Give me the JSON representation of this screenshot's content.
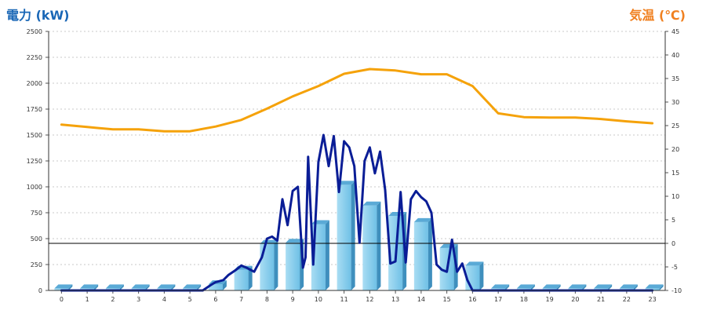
{
  "chart_data": {
    "type": "bar",
    "y_left_label": "電力 (kW)",
    "y_right_label": "気温 (℃)",
    "x_ticks": [
      "0",
      "1",
      "2",
      "3",
      "4",
      "5",
      "6",
      "7",
      "8",
      "9",
      "10",
      "11",
      "12",
      "13",
      "14",
      "15",
      "16",
      "17",
      "18",
      "19",
      "20",
      "21",
      "22",
      "23"
    ],
    "y_left_ticks": [
      "0",
      "250",
      "500",
      "750",
      "1000",
      "1250",
      "1500",
      "1750",
      "2000",
      "2250",
      "2500"
    ],
    "y_right_ticks": [
      "-10",
      "-5",
      "0",
      "5",
      "10",
      "15",
      "20",
      "25",
      "30",
      "35",
      "40",
      "45"
    ],
    "ylim_left": [
      0,
      2500
    ],
    "ylim_right": [
      -10,
      45
    ],
    "grid": true,
    "series": [
      {
        "type": "bar",
        "axis": "left",
        "color": "#87ceeb",
        "x": [
          0,
          1,
          2,
          3,
          4,
          5,
          6,
          7,
          8,
          9,
          10,
          11,
          12,
          13,
          14,
          15,
          16,
          17,
          18,
          19,
          20,
          21,
          22,
          23
        ],
        "values": [
          20,
          20,
          20,
          20,
          20,
          20,
          60,
          200,
          450,
          460,
          640,
          1020,
          820,
          720,
          660,
          410,
          240,
          20,
          20,
          20,
          20,
          20,
          20,
          20
        ]
      },
      {
        "type": "line",
        "axis": "left",
        "color": "#0a1d96",
        "x": [
          0,
          1,
          2,
          3,
          4,
          5,
          5.5,
          5.8,
          6,
          6.3,
          6.5,
          6.8,
          7,
          7.2,
          7.5,
          7.8,
          8,
          8.2,
          8.4,
          8.6,
          8.8,
          9,
          9.2,
          9.4,
          9.5,
          9.6,
          9.8,
          10,
          10.2,
          10.4,
          10.6,
          10.8,
          11,
          11.2,
          11.4,
          11.6,
          11.8,
          12,
          12.2,
          12.4,
          12.6,
          12.8,
          13,
          13.2,
          13.4,
          13.6,
          13.8,
          14,
          14.2,
          14.4,
          14.6,
          14.8,
          15,
          15.2,
          15.4,
          15.6,
          15.8,
          16,
          16.2,
          16.4,
          16.6,
          17,
          18,
          19,
          20,
          21,
          22,
          23
        ],
        "values": [
          0,
          0,
          0,
          0,
          0,
          0,
          0,
          50,
          80,
          100,
          150,
          200,
          240,
          220,
          180,
          320,
          500,
          520,
          480,
          880,
          630,
          960,
          1000,
          220,
          320,
          1290,
          250,
          1240,
          1500,
          1200,
          1490,
          950,
          1440,
          1380,
          1200,
          460,
          1250,
          1380,
          1130,
          1340,
          970,
          260,
          280,
          950,
          270,
          880,
          960,
          900,
          860,
          750,
          250,
          200,
          180,
          490,
          180,
          260,
          100,
          0,
          0,
          0,
          0,
          0,
          0,
          0,
          0,
          0,
          0,
          0
        ]
      },
      {
        "type": "line",
        "axis": "right",
        "color": "#f5a20a",
        "x": [
          0,
          1,
          2,
          3,
          4,
          5,
          6,
          7,
          8,
          9,
          10,
          11,
          12,
          13,
          14,
          15,
          16,
          17,
          18,
          19,
          20,
          21,
          22,
          23
        ],
        "values": [
          25.2,
          24.7,
          24.2,
          24.2,
          23.8,
          23.8,
          24.8,
          26.2,
          28.6,
          31.2,
          33.4,
          36.0,
          37.0,
          36.7,
          35.9,
          35.9,
          33.4,
          27.6,
          26.8,
          26.7,
          26.7,
          26.4,
          25.9,
          25.5
        ]
      }
    ],
    "reference_line": {
      "axis": "right",
      "value": 0,
      "color": "#000000"
    }
  }
}
